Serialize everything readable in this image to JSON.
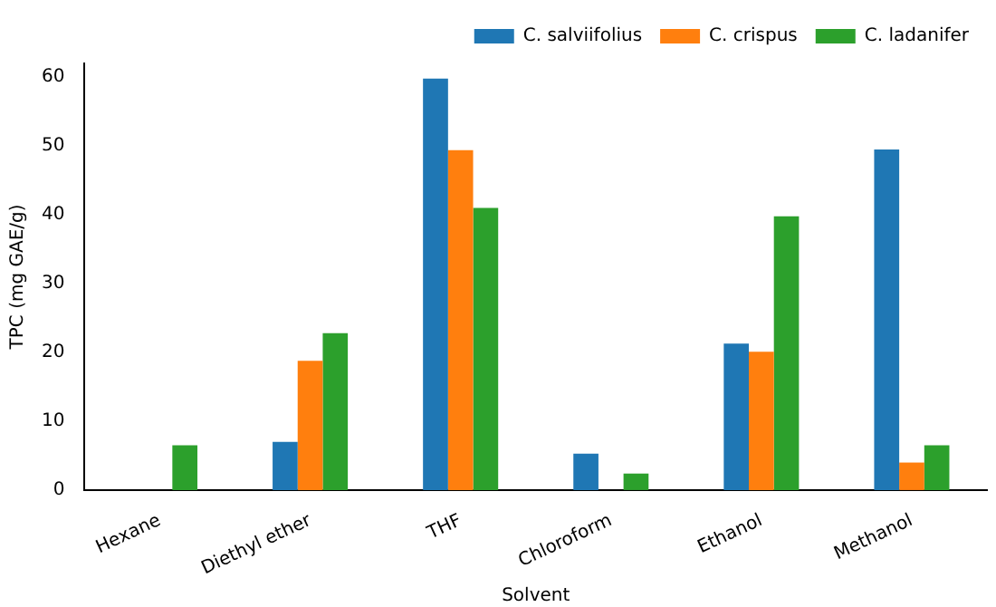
{
  "chart_data": {
    "type": "bar",
    "xlabel": "Solvent",
    "ylabel": "TPC (mg GAE/g)",
    "categories": [
      "Hexane",
      "Diethyl ether",
      "THF",
      "Chloroform",
      "Ethanol",
      "Methanol"
    ],
    "series": [
      {
        "name": "C. salviifolius",
        "color": "#1f77b4",
        "values": [
          0,
          7,
          59.8,
          5.3,
          21.3,
          49.5
        ]
      },
      {
        "name": "C. crispus",
        "color": "#ff7f0e",
        "values": [
          0,
          18.8,
          49.4,
          0,
          20.1,
          4
        ]
      },
      {
        "name": "C. ladanifer",
        "color": "#2ca02c",
        "values": [
          6.5,
          22.8,
          41,
          2.4,
          39.8,
          6.5
        ]
      }
    ],
    "ylim": [
      0,
      62
    ],
    "yticks": [
      0,
      10,
      20,
      30,
      40,
      50,
      60
    ],
    "grid": false,
    "legend": "top right"
  }
}
